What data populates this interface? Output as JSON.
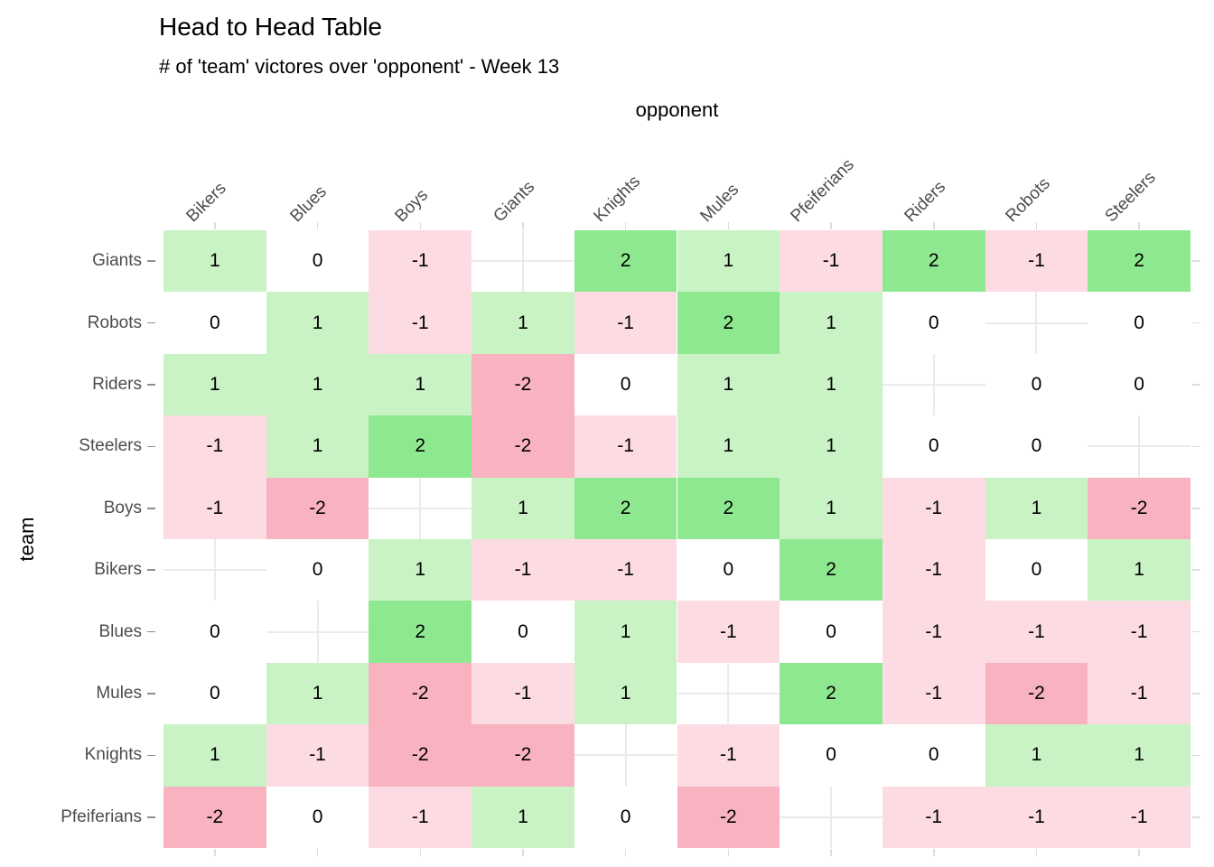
{
  "header": {
    "title": "Head to Head Table",
    "subtitle": "# of 'team' victores over 'opponent' - Week 13"
  },
  "chart_data": {
    "type": "heatmap",
    "title": "Head to Head Table",
    "subtitle": "# of 'team' victores over 'opponent' - Week 13",
    "xlabel": "opponent",
    "ylabel": "team",
    "xlabel_position": "top",
    "legend": "none",
    "grid": "light-gray cross shown only in empty diagonal cells",
    "columns": [
      "Bikers",
      "Blues",
      "Boys",
      "Giants",
      "Knights",
      "Mules",
      "Pfeiferians",
      "Riders",
      "Robots",
      "Steelers"
    ],
    "rows": [
      "Giants",
      "Robots",
      "Riders",
      "Steelers",
      "Boys",
      "Bikers",
      "Blues",
      "Mules",
      "Knights",
      "Pfeiferians"
    ],
    "values": [
      [
        1,
        0,
        -1,
        null,
        2,
        1,
        -1,
        2,
        -1,
        2
      ],
      [
        0,
        1,
        -1,
        1,
        -1,
        2,
        1,
        0,
        null,
        0
      ],
      [
        1,
        1,
        1,
        -2,
        0,
        1,
        1,
        null,
        0,
        0
      ],
      [
        -1,
        1,
        2,
        -2,
        -1,
        1,
        1,
        0,
        0,
        null
      ],
      [
        -1,
        -2,
        null,
        1,
        2,
        2,
        1,
        -1,
        1,
        -2
      ],
      [
        null,
        0,
        1,
        -1,
        -1,
        0,
        2,
        -1,
        0,
        1
      ],
      [
        0,
        null,
        2,
        0,
        1,
        -1,
        0,
        -1,
        -1,
        -1
      ],
      [
        0,
        1,
        -2,
        -1,
        1,
        null,
        2,
        -1,
        -2,
        -1
      ],
      [
        1,
        -1,
        -2,
        -2,
        null,
        -1,
        0,
        0,
        1,
        1
      ],
      [
        -2,
        0,
        -1,
        1,
        0,
        -2,
        null,
        -1,
        -1,
        -1
      ]
    ],
    "value_range": [
      -2,
      2
    ],
    "value_colors": {
      "-2": "#f9b2c0",
      "-1": "#fcdce2",
      "0": "#ffffff",
      "1": "#c9f3c5",
      "2": "#8ee88f"
    },
    "gridline_color": "#ebebeb",
    "label_color": "#4d4d4d"
  }
}
